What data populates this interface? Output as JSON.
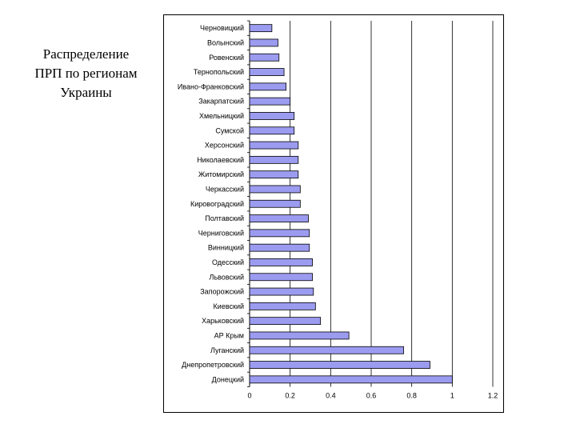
{
  "slide": {
    "title_lines": [
      "Распределение",
      "ПРП по регионам",
      "Украины"
    ]
  },
  "chart_data": {
    "type": "bar",
    "orientation": "horizontal",
    "title": "",
    "xlabel": "",
    "ylabel": "",
    "xlim": [
      0,
      1.2
    ],
    "x_ticks": [
      "0",
      "0.2",
      "0.4",
      "0.6",
      "0.8",
      "1",
      "1.2"
    ],
    "grid": "vertical",
    "legend": "none",
    "bar_color": "#9b9bf0",
    "bar_edge_color": "#000000",
    "categories": [
      "Черновицкий",
      "Волынский",
      "Ровенский",
      "Тернопольский",
      "Ивано-Франковский",
      "Закарпатский",
      "Хмельницкий",
      "Сумской",
      "Херсонский",
      "Николаевский",
      "Житомирский",
      "Черкасский",
      "Кировоградский",
      "Полтавский",
      "Черниговский",
      "Винницкий",
      "Одесский",
      "Львовский",
      "Запорожский",
      "Киевский",
      "Харьковский",
      "АР Крым",
      "Луганский",
      "Днепропетровский",
      "Донецкий"
    ],
    "values": [
      0.11,
      0.14,
      0.145,
      0.17,
      0.18,
      0.2,
      0.22,
      0.22,
      0.24,
      0.24,
      0.24,
      0.25,
      0.25,
      0.29,
      0.295,
      0.295,
      0.31,
      0.31,
      0.315,
      0.325,
      0.35,
      0.49,
      0.76,
      0.89,
      1.0
    ]
  }
}
